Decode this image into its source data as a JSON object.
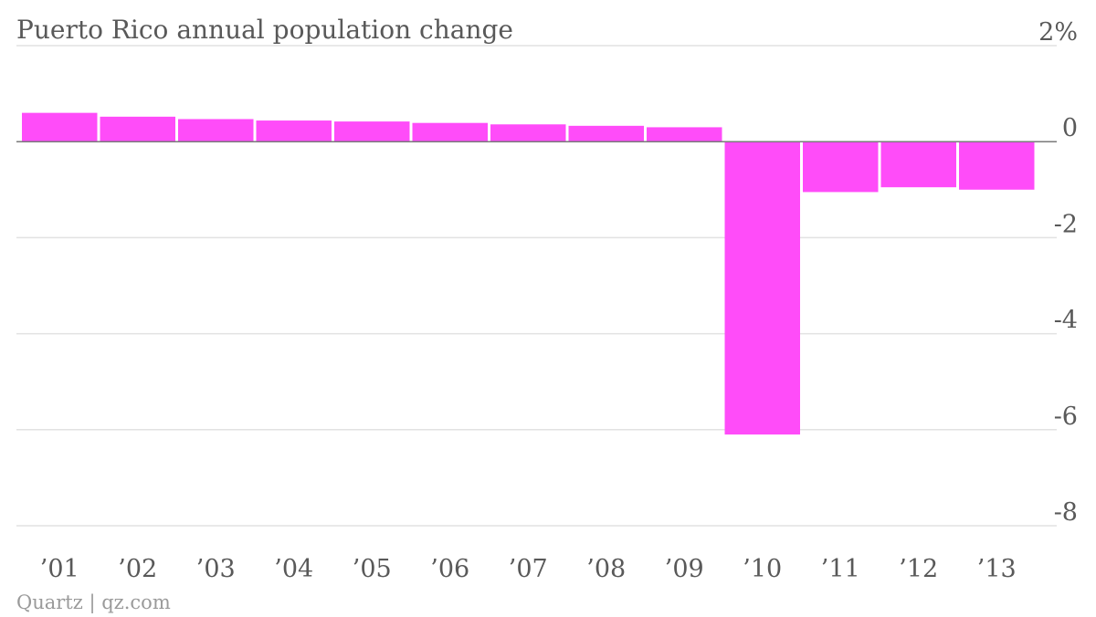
{
  "chart_data": {
    "type": "bar",
    "title": "Puerto Rico annual population change",
    "unit_suffix": "%",
    "categories": [
      "’01",
      "’02",
      "’03",
      "’04",
      "’05",
      "’06",
      "’07",
      "’08",
      "’09",
      "’10",
      "’11",
      "’12",
      "’13"
    ],
    "values": [
      0.6,
      0.52,
      0.47,
      0.44,
      0.42,
      0.39,
      0.36,
      0.33,
      0.3,
      -6.1,
      -1.05,
      -0.95,
      -1.0
    ],
    "ylim": [
      -8,
      2
    ],
    "yticks": [
      2,
      0,
      -2,
      -4,
      -6,
      -8
    ],
    "ytick_labels": [
      "2%",
      "0",
      "-2",
      "-4",
      "-6",
      "-8"
    ],
    "xlabel": "",
    "ylabel": "",
    "grid": true,
    "bar_color": "#ff4cf9",
    "source": "Quartz | qz.com"
  }
}
